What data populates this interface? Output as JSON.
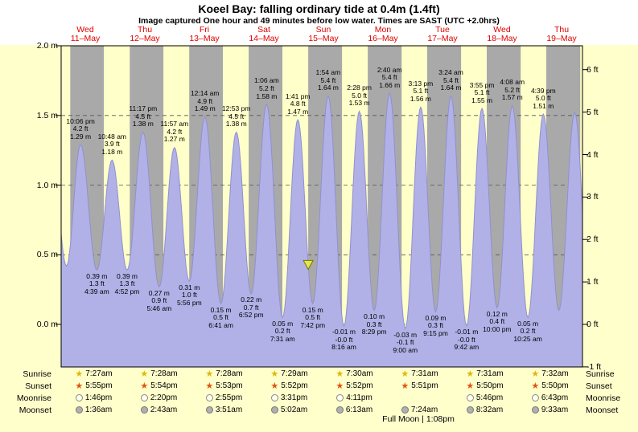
{
  "header": {
    "title": "Koeel Bay: falling  ordinary tide at 0.4m (1.4ft)",
    "subtitle": "Image captured One hour and 49 minutes before low water. Times are SAST (UTC +2.0hrs)"
  },
  "colors": {
    "page_bg": "#ffffcc",
    "header_bg": "#ffffff",
    "day_band": "#ffffc9",
    "night_band": "#a9a9a9",
    "curve_fill": "#b1b1e7",
    "curve_edge": "#9090d0",
    "day_label": "#e00000",
    "marker_fill": "#e6e64e",
    "marker_border": "#777700"
  },
  "chart_data": {
    "type": "area",
    "title": "Koeel Bay tide heights",
    "days": [
      {
        "dow": "Wed",
        "date": "11–May"
      },
      {
        "dow": "Thu",
        "date": "12–May"
      },
      {
        "dow": "Fri",
        "date": "13–May"
      },
      {
        "dow": "Sat",
        "date": "14–May"
      },
      {
        "dow": "Sun",
        "date": "15–May"
      },
      {
        "dow": "Mon",
        "date": "16–May"
      },
      {
        "dow": "Tue",
        "date": "17–May"
      },
      {
        "dow": "Wed",
        "date": "18–May"
      },
      {
        "dow": "Thu",
        "date": "19–May"
      }
    ],
    "y_axis_left": {
      "unit": "m",
      "ticks": [
        {
          "label": "2.0 m",
          "m": 2.0
        },
        {
          "label": "1.5 m",
          "m": 1.5
        },
        {
          "label": "1.0 m",
          "m": 1.0
        },
        {
          "label": "0.5 m",
          "m": 0.5
        },
        {
          "label": "0.0 m",
          "m": 0.0
        }
      ]
    },
    "y_axis_right": {
      "unit": "ft",
      "ticks": [
        {
          "label": "6 ft",
          "ft": 6
        },
        {
          "label": "5 ft",
          "ft": 5
        },
        {
          "label": "4 ft",
          "ft": 4
        },
        {
          "label": "3 ft",
          "ft": 3
        },
        {
          "label": "2 ft",
          "ft": 2
        },
        {
          "label": "1 ft",
          "ft": 1
        },
        {
          "label": "0 ft",
          "ft": 0
        },
        {
          "label": "-1 ft",
          "ft": -1
        }
      ]
    },
    "time_axis": {
      "epoch": "midnight 11-May",
      "hours_start": -9.73,
      "hours_end": 200.43
    },
    "night_bands_hours": [
      [
        -6.08,
        7.45
      ],
      [
        17.92,
        31.47
      ],
      [
        41.9,
        55.47
      ],
      [
        65.88,
        79.48
      ],
      [
        89.87,
        103.5
      ],
      [
        113.87,
        127.52
      ],
      [
        137.85,
        151.52
      ],
      [
        161.83,
        175.53
      ],
      [
        185.83,
        199.53
      ]
    ],
    "now_marker": {
      "t_hours": 89.88,
      "height_m": 0.43
    },
    "extrema": [
      {
        "kind": "high",
        "t_hours": -13.67,
        "height_m": 1.25,
        "label_lines": null,
        "approx": true
      },
      {
        "kind": "low",
        "t_hours": -7.57,
        "height_m": 0.42,
        "label_lines": null,
        "approx": true
      },
      {
        "kind": "high",
        "t_hours": -1.9,
        "height_m": 1.29,
        "label_lines": [
          "10:06 pm",
          "4.2 ft",
          "1.29 m"
        ]
      },
      {
        "kind": "low",
        "t_hours": 4.65,
        "height_m": 0.39,
        "label_lines": [
          "0.39 m",
          "1.3 ft",
          "4:39 am"
        ]
      },
      {
        "kind": "high",
        "t_hours": 10.8,
        "height_m": 1.18,
        "label_lines": [
          "10:48 am",
          "3.9 ft",
          "1.18 m"
        ]
      },
      {
        "kind": "low",
        "t_hours": 16.87,
        "height_m": 0.39,
        "label_lines": [
          "0.39 m",
          "1.3 ft",
          "4:52 pm"
        ]
      },
      {
        "kind": "high",
        "t_hours": 23.28,
        "height_m": 1.38,
        "label_lines": [
          "11:17 pm",
          "4.5 ft",
          "1.38 m"
        ]
      },
      {
        "kind": "low",
        "t_hours": 29.77,
        "height_m": 0.27,
        "label_lines": [
          "0.27 m",
          "0.9 ft",
          "5:46 am"
        ]
      },
      {
        "kind": "high",
        "t_hours": 35.95,
        "height_m": 1.27,
        "label_lines": [
          "11:57 am",
          "4.2 ft",
          "1.27 m"
        ]
      },
      {
        "kind": "low",
        "t_hours": 41.93,
        "height_m": 0.31,
        "label_lines": [
          "0.31 m",
          "1.0 ft",
          "5:56 pm"
        ]
      },
      {
        "kind": "high",
        "t_hours": 48.23,
        "height_m": 1.49,
        "label_lines": [
          "12:14 am",
          "4.9 ft",
          "1.49 m"
        ]
      },
      {
        "kind": "low",
        "t_hours": 54.68,
        "height_m": 0.15,
        "label_lines": [
          "0.15 m",
          "0.5 ft",
          "6:41 am"
        ]
      },
      {
        "kind": "high",
        "t_hours": 60.88,
        "height_m": 1.38,
        "label_lines": [
          "12:53 pm",
          "4.5 ft",
          "1.38 m"
        ]
      },
      {
        "kind": "low",
        "t_hours": 66.87,
        "height_m": 0.22,
        "label_lines": [
          "0.22 m",
          "0.7 ft",
          "6:52 pm"
        ]
      },
      {
        "kind": "high",
        "t_hours": 73.1,
        "height_m": 1.58,
        "label_lines": [
          "1:06 am",
          "5.2 ft",
          "1.58 m"
        ]
      },
      {
        "kind": "low",
        "t_hours": 79.52,
        "height_m": 0.05,
        "label_lines": [
          "0.05 m",
          "0.2 ft",
          "7:31 am"
        ]
      },
      {
        "kind": "high",
        "t_hours": 85.68,
        "height_m": 1.47,
        "label_lines": [
          "1:41 pm",
          "4.8 ft",
          "1.47 m"
        ]
      },
      {
        "kind": "low",
        "t_hours": 91.7,
        "height_m": 0.15,
        "label_lines": [
          "0.15 m",
          "0.5 ft",
          "7:42 pm"
        ]
      },
      {
        "kind": "high",
        "t_hours": 97.9,
        "height_m": 1.64,
        "label_lines": [
          "1:54 am",
          "5.4 ft",
          "1.64 m"
        ]
      },
      {
        "kind": "low",
        "t_hours": 104.27,
        "height_m": -0.01,
        "label_lines": [
          "-0.01 m",
          "-0.0 ft",
          "8:16 am"
        ]
      },
      {
        "kind": "high",
        "t_hours": 110.47,
        "height_m": 1.53,
        "label_lines": [
          "2:28 pm",
          "5.0 ft",
          "1.53 m"
        ]
      },
      {
        "kind": "low",
        "t_hours": 116.48,
        "height_m": 0.1,
        "label_lines": [
          "0.10 m",
          "0.3 ft",
          "8:29 pm"
        ]
      },
      {
        "kind": "high",
        "t_hours": 122.67,
        "height_m": 1.66,
        "label_lines": [
          "2:40 am",
          "5.4 ft",
          "1.66 m"
        ]
      },
      {
        "kind": "low",
        "t_hours": 129.0,
        "height_m": -0.03,
        "label_lines": [
          "-0.03 m",
          "-0.1 ft",
          "9:00 am"
        ]
      },
      {
        "kind": "high",
        "t_hours": 135.22,
        "height_m": 1.56,
        "label_lines": [
          "3:13 pm",
          "5.1 ft",
          "1.56 m"
        ]
      },
      {
        "kind": "low",
        "t_hours": 141.25,
        "height_m": 0.09,
        "label_lines": [
          "0.09 m",
          "0.3 ft",
          "9:15 pm"
        ]
      },
      {
        "kind": "high",
        "t_hours": 147.4,
        "height_m": 1.64,
        "label_lines": [
          "3:24 am",
          "5.4 ft",
          "1.64 m"
        ]
      },
      {
        "kind": "low",
        "t_hours": 153.7,
        "height_m": -0.01,
        "label_lines": [
          "-0.01 m",
          "-0.0 ft",
          "9:42 am"
        ]
      },
      {
        "kind": "high",
        "t_hours": 159.92,
        "height_m": 1.55,
        "label_lines": [
          "3:55 pm",
          "5.1 ft",
          "1.55 m"
        ]
      },
      {
        "kind": "low",
        "t_hours": 166.0,
        "height_m": 0.12,
        "label_lines": [
          "0.12 m",
          "0.4 ft",
          "10:00 pm"
        ]
      },
      {
        "kind": "high",
        "t_hours": 172.13,
        "height_m": 1.57,
        "label_lines": [
          "4:08 am",
          "5.2 ft",
          "1.57 m"
        ]
      },
      {
        "kind": "low",
        "t_hours": 178.42,
        "height_m": 0.05,
        "label_lines": [
          "0.05 m",
          "0.2 ft",
          "10:25 am"
        ]
      },
      {
        "kind": "high",
        "t_hours": 184.65,
        "height_m": 1.51,
        "label_lines": [
          "4:39 pm",
          "5.0 ft",
          "1.51 m"
        ]
      },
      {
        "kind": "low",
        "t_hours": 190.9,
        "height_m": 0.1,
        "label_lines": null,
        "approx": true
      },
      {
        "kind": "high",
        "t_hours": 197.3,
        "height_m": 1.52,
        "label_lines": null,
        "approx": true
      },
      {
        "kind": "low",
        "t_hours": 203.4,
        "height_m": 0.15,
        "label_lines": null,
        "approx": true
      }
    ]
  },
  "astro": {
    "rows": [
      {
        "label": "Sunrise",
        "icon": "sunrise-star-icon",
        "glyph": "★",
        "glyph_color": "#dfb607",
        "entries": [
          "7:27am",
          "7:28am",
          "7:28am",
          "7:29am",
          "7:30am",
          "7:31am",
          "7:31am",
          "7:32am"
        ]
      },
      {
        "label": "Sunset",
        "icon": "sunset-star-icon",
        "glyph": "★",
        "glyph_color": "#dd5511",
        "entries": [
          "5:55pm",
          "5:54pm",
          "5:53pm",
          "5:52pm",
          "5:52pm",
          "5:51pm",
          "5:50pm",
          "5:50pm"
        ]
      },
      {
        "label": "Moonrise",
        "icon": "moonrise-moon-icon",
        "circle_fill": "#fffff0",
        "circle_border": "#888888",
        "entries": [
          "1:46pm",
          "2:20pm",
          "2:55pm",
          "3:31pm",
          "4:11pm",
          "",
          "5:46pm",
          "6:43pm"
        ]
      },
      {
        "label": "Moonset",
        "icon": "moonset-moon-icon",
        "circle_fill": "#b0b0b0",
        "circle_border": "#777777",
        "entries": [
          "1:36am",
          "2:43am",
          "3:51am",
          "5:02am",
          "6:13am",
          "7:24am",
          "8:32am",
          "9:33am"
        ]
      }
    ],
    "full_moon": "Full Moon | 1:08pm"
  }
}
